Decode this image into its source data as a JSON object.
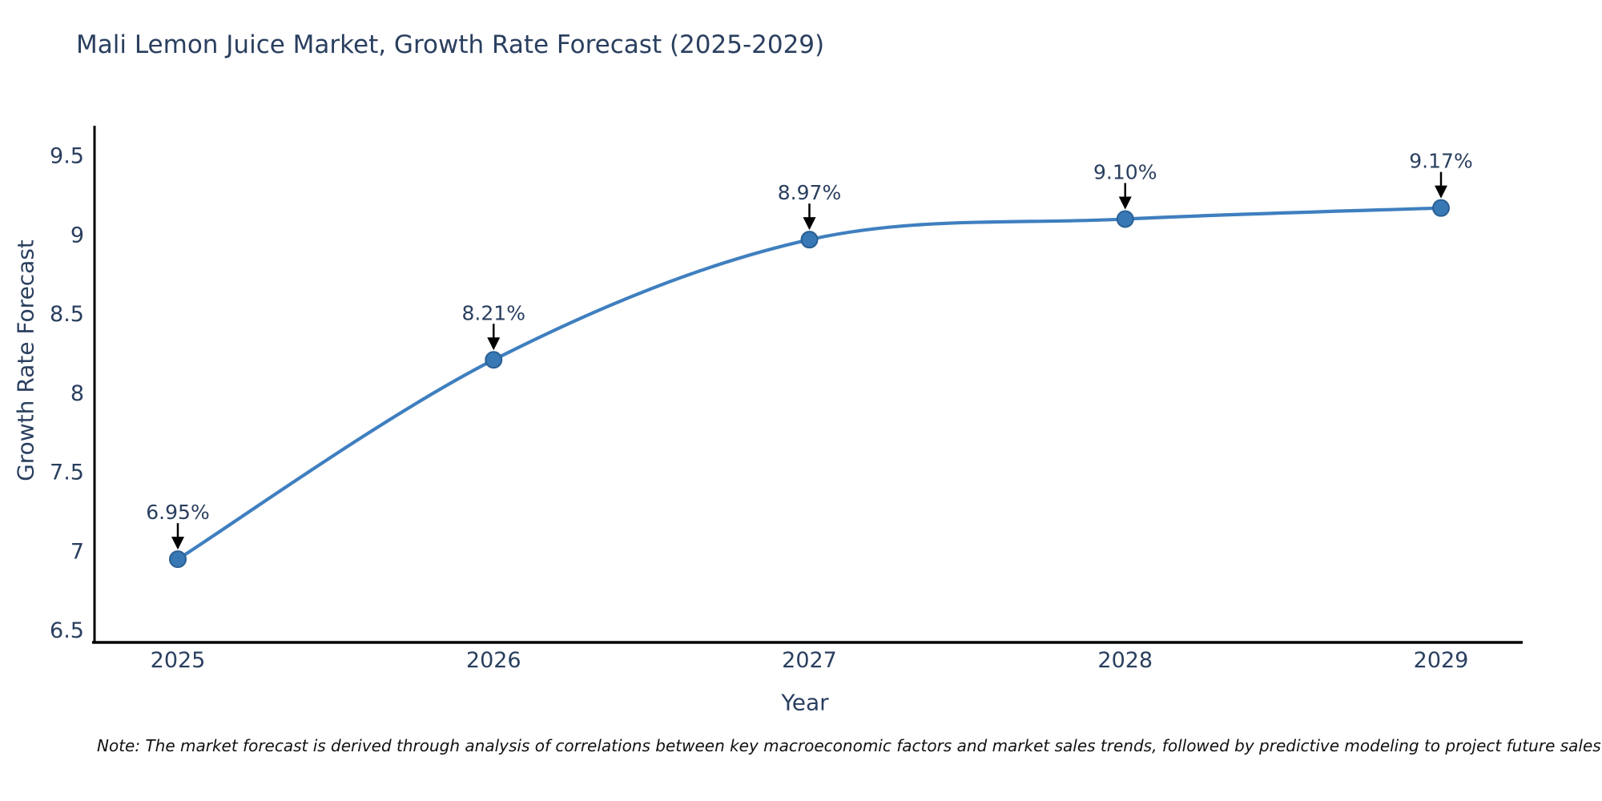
{
  "note": "Note: The market forecast is derived through analysis of correlations between key macroeconomic factors and market sales trends, followed by predictive modeling to project future sales",
  "chart_data": {
    "type": "line",
    "title": "Mali Lemon Juice Market, Growth Rate Forecast (2025-2029)",
    "xlabel": "Year",
    "ylabel": "Growth Rate Forecast",
    "x": [
      "2025",
      "2026",
      "2027",
      "2028",
      "2029"
    ],
    "values": [
      6.95,
      8.21,
      8.97,
      9.1,
      9.17
    ],
    "point_labels": [
      "6.95%",
      "8.21%",
      "8.97%",
      "9.10%",
      "9.17%"
    ],
    "ylim": [
      6.5,
      9.5
    ],
    "yticks": [
      "6.5",
      "7",
      "7.5",
      "8",
      "8.5",
      "9",
      "9.5"
    ],
    "curve": "spline",
    "grid": false,
    "legend": "none",
    "line_color": "#3f7fbf",
    "marker_fill_color": "#3878b4",
    "marker_edge_color": "#2a6093",
    "axis_line_color": "#000000",
    "annotation_arrow_color": "#000000",
    "text_color": "#2a3f5f"
  }
}
